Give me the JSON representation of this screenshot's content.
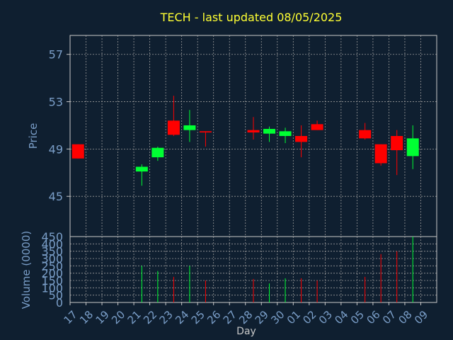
{
  "chart_data": {
    "type": "candlestick",
    "title": "TECH - last updated 08/05/2025",
    "colors": {
      "background": "#0f1f30",
      "axis": "#c8c8c8",
      "grid": "#9a9a9a",
      "label": "#7a9ec8",
      "title": "#ffff33",
      "up": "#00ff33",
      "down": "#ff0000"
    },
    "x": {
      "xlabel": "Day",
      "tick_labels": [
        "17",
        "18",
        "19",
        "20",
        "21",
        "22",
        "23",
        "24",
        "25",
        "26",
        "27",
        "28",
        "29",
        "30",
        "01",
        "02",
        "03",
        "04",
        "05",
        "06",
        "07",
        "08",
        "09"
      ]
    },
    "price": {
      "ylabel": "Price",
      "ylim": [
        41.6,
        58.6
      ],
      "ticks": [
        45,
        49,
        53,
        57
      ],
      "tick_labels": [
        "45",
        "49",
        "53",
        "57"
      ]
    },
    "volume": {
      "ylabel": "Volume (0000)",
      "ylim": [
        0,
        450
      ],
      "ticks": [
        0,
        50,
        100,
        150,
        200,
        250,
        300,
        350,
        400,
        450
      ],
      "tick_labels": [
        "0",
        "50",
        "100",
        "150",
        "200",
        "250",
        "300",
        "350",
        "400",
        "450"
      ]
    },
    "candles": [
      {
        "x": 0,
        "open": 49.4,
        "high": 49.4,
        "low": 48.2,
        "close": 48.2,
        "volume": 0
      },
      {
        "x": 4,
        "open": 47.1,
        "high": 47.7,
        "low": 45.9,
        "close": 47.5,
        "volume": 250
      },
      {
        "x": 5,
        "open": 48.3,
        "high": 49.2,
        "low": 48.0,
        "close": 49.1,
        "volume": 215
      },
      {
        "x": 6,
        "open": 51.4,
        "high": 53.5,
        "low": 50.1,
        "close": 50.2,
        "volume": 175
      },
      {
        "x": 7,
        "open": 50.6,
        "high": 52.3,
        "low": 49.6,
        "close": 51.0,
        "volume": 250
      },
      {
        "x": 8,
        "open": 50.5,
        "high": 50.5,
        "low": 49.2,
        "close": 50.4,
        "volume": 150
      },
      {
        "x": 11,
        "open": 50.6,
        "high": 51.7,
        "low": 49.8,
        "close": 50.4,
        "volume": 160
      },
      {
        "x": 12,
        "open": 50.3,
        "high": 50.9,
        "low": 49.6,
        "close": 50.7,
        "volume": 130
      },
      {
        "x": 13,
        "open": 50.1,
        "high": 50.8,
        "low": 49.5,
        "close": 50.5,
        "volume": 165
      },
      {
        "x": 14,
        "open": 50.1,
        "high": 51.0,
        "low": 48.3,
        "close": 49.6,
        "volume": 165
      },
      {
        "x": 15,
        "open": 51.1,
        "high": 51.4,
        "low": 50.6,
        "close": 50.6,
        "volume": 150
      },
      {
        "x": 18,
        "open": 50.6,
        "high": 51.2,
        "low": 49.8,
        "close": 49.9,
        "volume": 175
      },
      {
        "x": 19,
        "open": 49.4,
        "high": 49.4,
        "low": 47.6,
        "close": 47.8,
        "volume": 330
      },
      {
        "x": 20,
        "open": 50.1,
        "high": 50.6,
        "low": 46.8,
        "close": 48.9,
        "volume": 350
      },
      {
        "x": 21,
        "open": 48.4,
        "high": 51.0,
        "low": 47.3,
        "close": 49.9,
        "volume": 450
      }
    ]
  }
}
